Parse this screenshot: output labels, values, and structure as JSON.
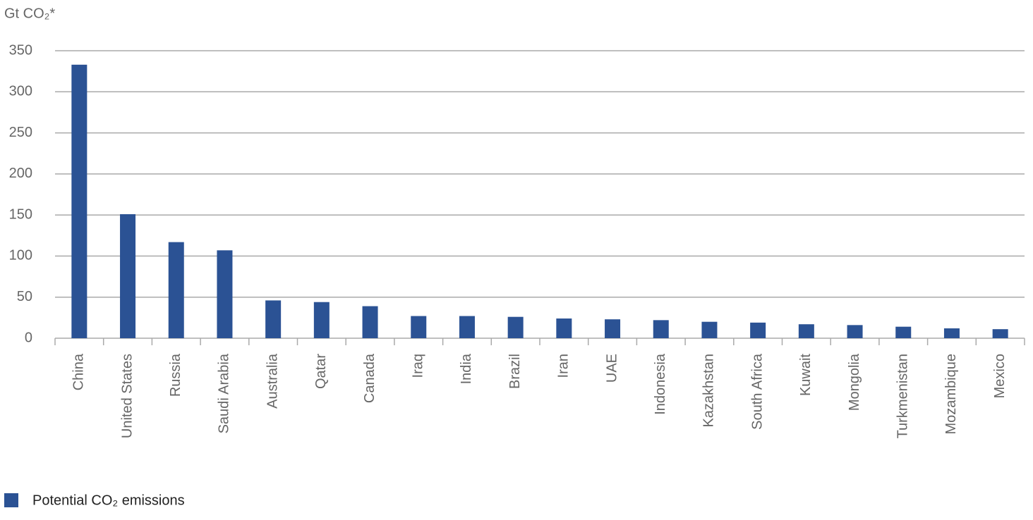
{
  "chart_data": {
    "type": "bar",
    "y_label": "Gt CO₂*",
    "categories": [
      "China",
      "United States",
      "Russia",
      "Saudi Arabia",
      "Australia",
      "Qatar",
      "Canada",
      "Iraq",
      "India",
      "Brazil",
      "Iran",
      "UAE",
      "Indonesia",
      "Kazakhstan",
      "South Africa",
      "Kuwait",
      "Mongolia",
      "Turkmenistan",
      "Mozambique",
      "Mexico"
    ],
    "series": [
      {
        "name": "Potential CO₂ emissions",
        "color": "#2b5294",
        "values": [
          333,
          151,
          117,
          107,
          46,
          44,
          39,
          27,
          27,
          26,
          24,
          23,
          22,
          20,
          19,
          17,
          16,
          14,
          12,
          11
        ]
      }
    ],
    "ylim": [
      0,
      350
    ],
    "yticks": [
      0,
      50,
      100,
      150,
      200,
      250,
      300,
      350
    ],
    "grid": true
  }
}
